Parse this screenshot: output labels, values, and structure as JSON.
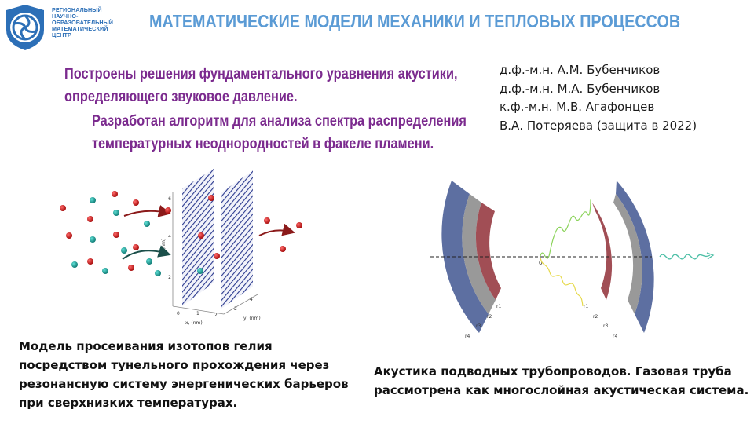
{
  "header": {
    "logo_text_lines": [
      "РЕГИОНАЛЬНЫЙ",
      "НАУЧНО-",
      "ОБРАЗОВАТЕЛЬНЫЙ",
      "МАТЕМАТИЧЕСКИЙ",
      "ЦЕНТР"
    ],
    "title": "МАТЕМАТИЧЕСКИЕ МОДЕЛИ МЕХАНИКИ И ТЕПЛОВЫХ ПРОЦЕССОВ",
    "title_color": "#5b9bd5",
    "brand_color": "#2c6fb7"
  },
  "results": {
    "item1_line1": "Построены решения фундаментального уравнения акустики,",
    "item1_line2": "определяющего звуковое давление.",
    "item2_line1": "Разработан алгоритм для анализа спектра распределения",
    "item2_line2": "температурных неоднородностей в факеле пламени.",
    "color": "#7b2a8e"
  },
  "authors": [
    "д.ф.-м.н. А.М. Бубенчиков",
    "д.ф.-м.н. М.А. Бубенчиков",
    "к.ф.-м.н. М.В. Агафонцев",
    "В.А. Потеряева (защита в 2022)"
  ],
  "left_figure": {
    "axis_z_label": "z, (nm)",
    "axis_x_label": "x, (nm)",
    "axis_y_label": "y, (nm)",
    "z_ticks": [
      "2",
      "4",
      "6"
    ],
    "x_ticks": [
      "0",
      "1",
      "2"
    ],
    "y_ticks": [
      "2",
      "4"
    ],
    "caption_lines": [
      "Модель просеивания изотопов гелия",
      "посредством тунельного прохождения через",
      "резонансную систему энергенических барьеров",
      "при сверхнизких температурах."
    ]
  },
  "right_figure": {
    "origin_label": "0",
    "left_labels": [
      "r1",
      "r2",
      "r3",
      "r4"
    ],
    "right_labels": [
      "r1",
      "r2",
      "r3",
      "r4"
    ],
    "layer_colors": [
      "#5d6fa1",
      "#999999",
      "#a14e55"
    ],
    "caption_lines": [
      "Акустика подводных трубопроводов. Газовая труба",
      "рассмотрена как многослойная акустическая система."
    ]
  }
}
